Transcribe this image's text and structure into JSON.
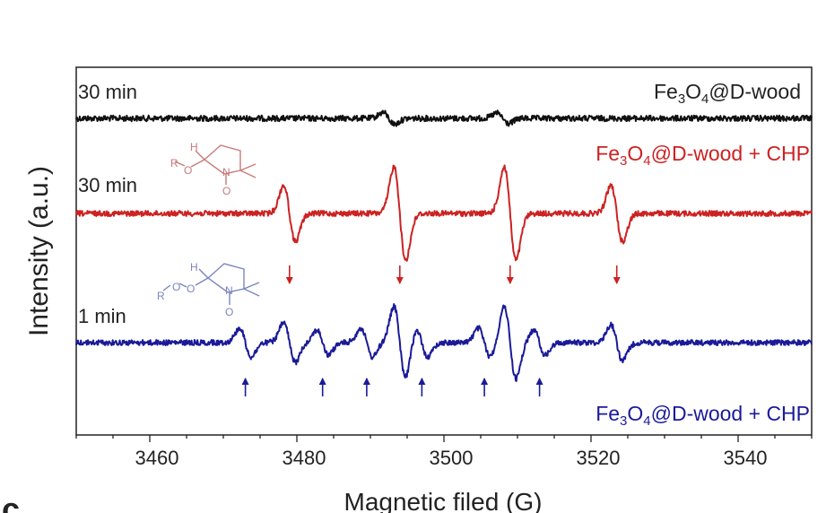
{
  "chart_data": {
    "type": "line",
    "xlabel": "Magnetic filed (G)",
    "ylabel": "Intensity (a.u.)",
    "xlim": [
      3450,
      3550
    ],
    "xticks": [
      "3460",
      "3480",
      "3500",
      "3520",
      "3540"
    ],
    "panel_letter": "c",
    "colors": {
      "black": "#111111",
      "red": "#cc2222",
      "blue": "#1a1a99",
      "red_structure": "#c87a7a",
      "blue_structure": "#7a86bf"
    },
    "series": [
      {
        "name": "Fe3O4@D-wood",
        "color": "#111111",
        "time_label": "30 min",
        "legend": {
          "prefix": "Fe",
          "sub1": "3",
          "mid": "O",
          "sub2": "4",
          "suffix": "@D-wood"
        },
        "peaks": [
          {
            "x": 3492.5,
            "amp": 0.25
          },
          {
            "x": 3508,
            "amp": 0.22
          }
        ]
      },
      {
        "name": "Fe3O4@D-wood + CHP",
        "color": "#cc2222",
        "time_label": "30 min",
        "legend": {
          "prefix": "Fe",
          "sub1": "3",
          "mid": "O",
          "sub2": "4",
          "suffix": "@D-wood + CHP"
        },
        "peaks": [
          {
            "x": 3479,
            "amp": 0.6
          },
          {
            "x": 3494,
            "amp": 1.0
          },
          {
            "x": 3509,
            "amp": 1.0
          },
          {
            "x": 3523.5,
            "amp": 0.6
          }
        ]
      },
      {
        "name": "Fe3O4@D-wood + CHP",
        "color": "#1a1a99",
        "time_label": "1 min",
        "legend": {
          "prefix": "Fe",
          "sub1": "3",
          "mid": "O",
          "sub2": "4",
          "suffix": "@D-wood + CHP"
        },
        "peaks": [
          {
            "x": 3473,
            "amp": 0.4
          },
          {
            "x": 3479,
            "amp": 0.55
          },
          {
            "x": 3483.5,
            "amp": 0.35
          },
          {
            "x": 3489.5,
            "amp": 0.4
          },
          {
            "x": 3494,
            "amp": 1.0
          },
          {
            "x": 3497,
            "amp": 0.4
          },
          {
            "x": 3505.5,
            "amp": 0.4
          },
          {
            "x": 3509,
            "amp": 1.0
          },
          {
            "x": 3513,
            "amp": 0.35
          },
          {
            "x": 3523.5,
            "amp": 0.5
          }
        ]
      }
    ],
    "down_arrows_red": [
      3479,
      3494,
      3509,
      3523.5
    ],
    "up_arrows_blue": [
      3473,
      3483.5,
      3489.5,
      3497,
      3505.5,
      3513
    ],
    "structures": [
      {
        "color": "#c87a7a",
        "labels": {
          "h": "H",
          "r": "R",
          "o1": "O",
          "n": "N",
          "o2": "O"
        }
      },
      {
        "color": "#7a86bf",
        "labels": {
          "h": "H",
          "r": "R",
          "o1": "O",
          "o3": "O",
          "n": "N",
          "o2": "O"
        }
      }
    ]
  }
}
